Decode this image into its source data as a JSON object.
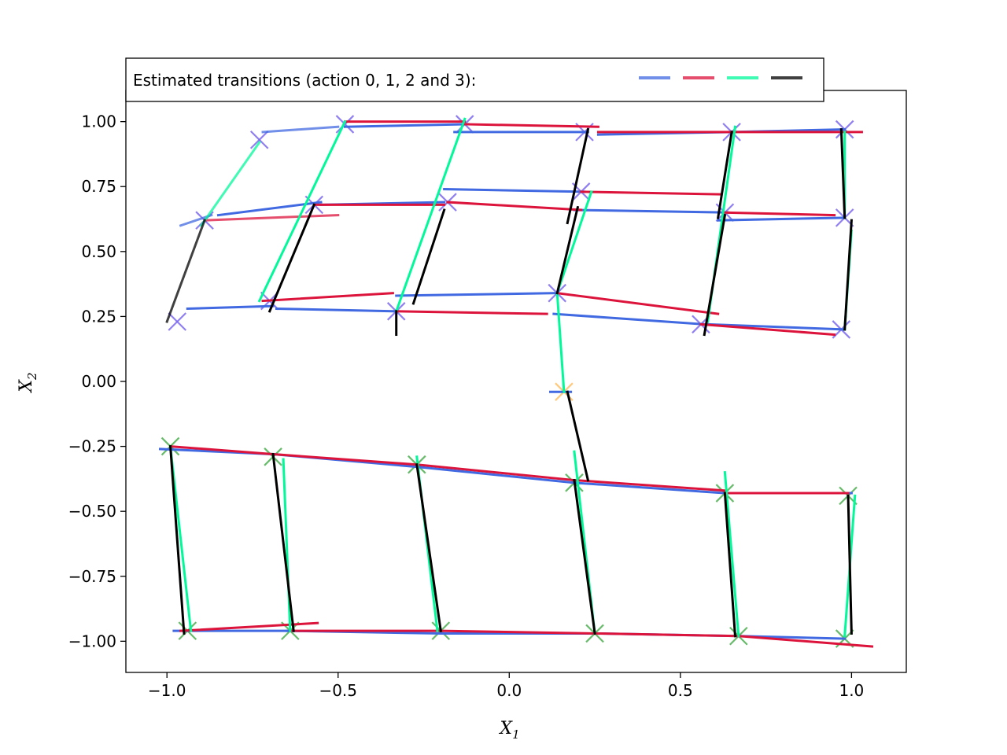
{
  "chart_data": {
    "type": "scatter",
    "title": "",
    "xlabel": "X",
    "xlabel_sub": "1",
    "ylabel": "X",
    "ylabel_sub": "2",
    "xlim": [
      -1.12,
      1.16
    ],
    "ylim": [
      -1.12,
      1.12
    ],
    "xticks": [
      -1.0,
      -0.5,
      0.0,
      0.5,
      1.0
    ],
    "xtick_labels": [
      "−1.0",
      "−0.5",
      "0.0",
      "0.5",
      "1.0"
    ],
    "yticks": [
      1.0,
      0.75,
      0.5,
      0.25,
      0.0,
      -0.25,
      -0.5,
      -0.75,
      -1.0
    ],
    "ytick_labels": [
      "1.00",
      "0.75",
      "0.50",
      "0.25",
      "0.00",
      "−0.25",
      "−0.50",
      "−0.75",
      "−1.00"
    ],
    "grid": false,
    "legend": {
      "text": "Estimated transitions (action 0, 1, 2 and 3):",
      "placement": "top-left",
      "actions": [
        {
          "action": 0,
          "color": "#4169e1"
        },
        {
          "action": 1,
          "color": "#dc143c"
        },
        {
          "action": 2,
          "color": "#00fa9a"
        },
        {
          "action": 3,
          "color": "#000000"
        }
      ]
    },
    "marker_colors": {
      "upper": "#7b68ee",
      "lower": "#4caf50",
      "mid": "#ffc066"
    },
    "points": [
      {
        "x": -0.97,
        "y": 0.23,
        "group": "upper"
      },
      {
        "x": -0.89,
        "y": 0.62,
        "group": "upper"
      },
      {
        "x": -0.73,
        "y": 0.93,
        "group": "upper"
      },
      {
        "x": -0.48,
        "y": 0.99,
        "group": "upper"
      },
      {
        "x": -0.7,
        "y": 0.31,
        "group": "upper"
      },
      {
        "x": -0.57,
        "y": 0.68,
        "group": "upper"
      },
      {
        "x": -0.33,
        "y": 0.27,
        "group": "upper"
      },
      {
        "x": -0.18,
        "y": 0.69,
        "group": "upper"
      },
      {
        "x": -0.13,
        "y": 0.99,
        "group": "upper"
      },
      {
        "x": 0.14,
        "y": 0.34,
        "group": "upper"
      },
      {
        "x": 0.21,
        "y": 0.73,
        "group": "upper"
      },
      {
        "x": 0.22,
        "y": 0.96,
        "group": "upper"
      },
      {
        "x": 0.56,
        "y": 0.22,
        "group": "upper"
      },
      {
        "x": 0.63,
        "y": 0.65,
        "group": "upper"
      },
      {
        "x": 0.65,
        "y": 0.96,
        "group": "upper"
      },
      {
        "x": 0.97,
        "y": 0.2,
        "group": "upper"
      },
      {
        "x": 0.98,
        "y": 0.63,
        "group": "upper"
      },
      {
        "x": 0.98,
        "y": 0.97,
        "group": "upper"
      },
      {
        "x": 0.16,
        "y": -0.04,
        "group": "mid"
      },
      {
        "x": -0.99,
        "y": -0.25,
        "group": "lower"
      },
      {
        "x": -0.69,
        "y": -0.29,
        "group": "lower"
      },
      {
        "x": -0.27,
        "y": -0.32,
        "group": "lower"
      },
      {
        "x": 0.19,
        "y": -0.39,
        "group": "lower"
      },
      {
        "x": 0.63,
        "y": -0.43,
        "group": "lower"
      },
      {
        "x": 0.99,
        "y": -0.44,
        "group": "lower"
      },
      {
        "x": -0.94,
        "y": -0.96,
        "group": "lower"
      },
      {
        "x": -0.64,
        "y": -0.96,
        "group": "lower"
      },
      {
        "x": -0.2,
        "y": -0.96,
        "group": "lower"
      },
      {
        "x": 0.25,
        "y": -0.97,
        "group": "lower"
      },
      {
        "x": 0.67,
        "y": -0.98,
        "group": "lower"
      },
      {
        "x": 0.98,
        "y": -0.99,
        "group": "lower"
      }
    ],
    "transitions": [
      {
        "action": 0,
        "alpha": 0.75,
        "x0": -0.96,
        "y0": 0.6,
        "x1": -0.87,
        "y1": 0.64
      },
      {
        "action": 0,
        "alpha": 0.75,
        "x0": -0.72,
        "y0": 0.96,
        "x1": -0.5,
        "y1": 0.98
      },
      {
        "action": 0,
        "alpha": 1,
        "x0": -0.85,
        "y0": 0.64,
        "x1": -0.55,
        "y1": 0.69
      },
      {
        "action": 0,
        "alpha": 1,
        "x0": -0.94,
        "y0": 0.28,
        "x1": -0.69,
        "y1": 0.29
      },
      {
        "action": 0,
        "alpha": 1,
        "x0": -0.48,
        "y0": 0.98,
        "x1": -0.12,
        "y1": 0.99
      },
      {
        "action": 0,
        "alpha": 1,
        "x0": -0.68,
        "y0": 0.28,
        "x1": -0.33,
        "y1": 0.27
      },
      {
        "action": 0,
        "alpha": 1,
        "x0": -0.55,
        "y0": 0.68,
        "x1": -0.19,
        "y1": 0.69
      },
      {
        "action": 0,
        "alpha": 1,
        "x0": -0.33,
        "y0": 0.33,
        "x1": 0.14,
        "y1": 0.34
      },
      {
        "action": 0,
        "alpha": 1,
        "x0": -0.19,
        "y0": 0.74,
        "x1": 0.22,
        "y1": 0.73
      },
      {
        "action": 0,
        "alpha": 1,
        "x0": -0.16,
        "y0": 0.96,
        "x1": 0.23,
        "y1": 0.96
      },
      {
        "action": 0,
        "alpha": 1,
        "x0": 0.13,
        "y0": 0.26,
        "x1": 0.57,
        "y1": 0.22
      },
      {
        "action": 0,
        "alpha": 1,
        "x0": 0.19,
        "y0": 0.66,
        "x1": 0.64,
        "y1": 0.65
      },
      {
        "action": 0,
        "alpha": 1,
        "x0": 0.26,
        "y0": 0.95,
        "x1": 0.65,
        "y1": 0.96
      },
      {
        "action": 0,
        "alpha": 1,
        "x0": 0.58,
        "y0": 0.22,
        "x1": 0.98,
        "y1": 0.2
      },
      {
        "action": 0,
        "alpha": 1,
        "x0": 0.61,
        "y0": 0.62,
        "x1": 0.98,
        "y1": 0.63
      },
      {
        "action": 0,
        "alpha": 1,
        "x0": 0.65,
        "y0": 0.96,
        "x1": 0.98,
        "y1": 0.97
      },
      {
        "action": 0,
        "alpha": 1,
        "x0": 0.12,
        "y0": -0.04,
        "x1": 0.18,
        "y1": -0.04
      },
      {
        "action": 0,
        "alpha": 1,
        "x0": -1.02,
        "y0": -0.26,
        "x1": -0.69,
        "y1": -0.28
      },
      {
        "action": 0,
        "alpha": 1,
        "x0": -0.69,
        "y0": -0.28,
        "x1": -0.26,
        "y1": -0.33
      },
      {
        "action": 0,
        "alpha": 1,
        "x0": -0.26,
        "y0": -0.33,
        "x1": 0.19,
        "y1": -0.39
      },
      {
        "action": 0,
        "alpha": 1,
        "x0": 0.19,
        "y0": -0.39,
        "x1": 0.63,
        "y1": -0.43
      },
      {
        "action": 0,
        "alpha": 1,
        "x0": 0.63,
        "y0": -0.43,
        "x1": 1.0,
        "y1": -0.43
      },
      {
        "action": 0,
        "alpha": 1,
        "x0": -0.98,
        "y0": -0.96,
        "x1": -0.65,
        "y1": -0.96
      },
      {
        "action": 0,
        "alpha": 1,
        "x0": -0.65,
        "y0": -0.96,
        "x1": -0.2,
        "y1": -0.97
      },
      {
        "action": 0,
        "alpha": 1,
        "x0": -0.2,
        "y0": -0.97,
        "x1": 0.25,
        "y1": -0.97
      },
      {
        "action": 0,
        "alpha": 1,
        "x0": 0.25,
        "y0": -0.97,
        "x1": 0.67,
        "y1": -0.98
      },
      {
        "action": 0,
        "alpha": 1,
        "x0": 0.67,
        "y0": -0.98,
        "x1": 0.98,
        "y1": -0.99
      },
      {
        "action": 1,
        "alpha": 0.75,
        "x0": -0.89,
        "y0": 0.62,
        "x1": -0.5,
        "y1": 0.64
      },
      {
        "action": 1,
        "alpha": 1,
        "x0": -0.57,
        "y0": 0.68,
        "x1": -0.19,
        "y1": 0.68
      },
      {
        "action": 1,
        "alpha": 1,
        "x0": -0.48,
        "y0": 1.0,
        "x1": -0.13,
        "y1": 1.0
      },
      {
        "action": 1,
        "alpha": 1,
        "x0": -0.72,
        "y0": 0.31,
        "x1": -0.34,
        "y1": 0.34
      },
      {
        "action": 1,
        "alpha": 1,
        "x0": -0.33,
        "y0": 0.27,
        "x1": 0.11,
        "y1": 0.26
      },
      {
        "action": 1,
        "alpha": 1,
        "x0": -0.18,
        "y0": 0.69,
        "x1": 0.21,
        "y1": 0.66
      },
      {
        "action": 1,
        "alpha": 1,
        "x0": -0.13,
        "y0": 0.99,
        "x1": 0.26,
        "y1": 0.98
      },
      {
        "action": 1,
        "alpha": 1,
        "x0": 0.14,
        "y0": 0.34,
        "x1": 0.61,
        "y1": 0.26
      },
      {
        "action": 1,
        "alpha": 1,
        "x0": 0.21,
        "y0": 0.73,
        "x1": 0.62,
        "y1": 0.72
      },
      {
        "action": 1,
        "alpha": 1,
        "x0": 0.26,
        "y0": 0.96,
        "x1": 0.65,
        "y1": 0.96
      },
      {
        "action": 1,
        "alpha": 1,
        "x0": 0.56,
        "y0": 0.22,
        "x1": 0.95,
        "y1": 0.18
      },
      {
        "action": 1,
        "alpha": 1,
        "x0": 0.63,
        "y0": 0.65,
        "x1": 0.95,
        "y1": 0.64
      },
      {
        "action": 1,
        "alpha": 1,
        "x0": 0.65,
        "y0": 0.96,
        "x1": 1.03,
        "y1": 0.96
      },
      {
        "action": 1,
        "alpha": 1,
        "x0": -0.99,
        "y0": -0.25,
        "x1": -0.69,
        "y1": -0.28
      },
      {
        "action": 1,
        "alpha": 1,
        "x0": -0.69,
        "y0": -0.28,
        "x1": -0.27,
        "y1": -0.32
      },
      {
        "action": 1,
        "alpha": 1,
        "x0": -0.27,
        "y0": -0.32,
        "x1": 0.19,
        "y1": -0.38
      },
      {
        "action": 1,
        "alpha": 1,
        "x0": 0.19,
        "y0": -0.38,
        "x1": 0.63,
        "y1": -0.42
      },
      {
        "action": 1,
        "alpha": 1,
        "x0": 0.63,
        "y0": -0.43,
        "x1": 0.99,
        "y1": -0.43
      },
      {
        "action": 1,
        "alpha": 1,
        "x0": -0.96,
        "y0": -0.96,
        "x1": -0.56,
        "y1": -0.93
      },
      {
        "action": 1,
        "alpha": 1,
        "x0": -0.64,
        "y0": -0.96,
        "x1": -0.2,
        "y1": -0.96
      },
      {
        "action": 1,
        "alpha": 1,
        "x0": -0.2,
        "y0": -0.96,
        "x1": 0.25,
        "y1": -0.97
      },
      {
        "action": 1,
        "alpha": 1,
        "x0": 0.25,
        "y0": -0.97,
        "x1": 0.67,
        "y1": -0.98
      },
      {
        "action": 1,
        "alpha": 1,
        "x0": 0.67,
        "y0": -0.98,
        "x1": 1.06,
        "y1": -1.02
      },
      {
        "action": 2,
        "alpha": 0.75,
        "x0": -0.9,
        "y0": 0.6,
        "x1": -0.73,
        "y1": 0.92
      },
      {
        "action": 2,
        "alpha": 1,
        "x0": -0.73,
        "y0": 0.31,
        "x1": -0.48,
        "y1": 1.0
      },
      {
        "action": 2,
        "alpha": 1,
        "x0": -0.33,
        "y0": 0.27,
        "x1": -0.13,
        "y1": 1.01
      },
      {
        "action": 2,
        "alpha": 1,
        "x0": 0.14,
        "y0": 0.34,
        "x1": 0.24,
        "y1": 0.73
      },
      {
        "action": 2,
        "alpha": 1,
        "x0": 0.58,
        "y0": 0.23,
        "x1": 0.66,
        "y1": 0.98
      },
      {
        "action": 2,
        "alpha": 1,
        "x0": 0.98,
        "y0": 0.2,
        "x1": 1.0,
        "y1": 0.58
      },
      {
        "action": 2,
        "alpha": 1,
        "x0": 0.98,
        "y0": 0.63,
        "x1": 0.98,
        "y1": 0.96
      },
      {
        "action": 2,
        "alpha": 1,
        "x0": 0.16,
        "y0": -0.04,
        "x1": 0.14,
        "y1": 0.34
      },
      {
        "action": 2,
        "alpha": 1,
        "x0": -0.99,
        "y0": -0.25,
        "x1": -0.93,
        "y1": -0.96
      },
      {
        "action": 2,
        "alpha": 1,
        "x0": -0.66,
        "y0": -0.3,
        "x1": -0.64,
        "y1": -0.96
      },
      {
        "action": 2,
        "alpha": 1,
        "x0": -0.27,
        "y0": -0.29,
        "x1": -0.21,
        "y1": -0.96
      },
      {
        "action": 2,
        "alpha": 1,
        "x0": 0.19,
        "y0": -0.27,
        "x1": 0.25,
        "y1": -0.97
      },
      {
        "action": 2,
        "alpha": 1,
        "x0": 0.63,
        "y0": -0.35,
        "x1": 0.67,
        "y1": -0.98
      },
      {
        "action": 2,
        "alpha": 1,
        "x0": 1.01,
        "y0": -0.44,
        "x1": 0.98,
        "y1": -0.98
      },
      {
        "action": 3,
        "alpha": 0.75,
        "x0": -1.0,
        "y0": 0.23,
        "x1": -0.89,
        "y1": 0.62
      },
      {
        "action": 3,
        "alpha": 1,
        "x0": -0.7,
        "y0": 0.27,
        "x1": -0.57,
        "y1": 0.68
      },
      {
        "action": 3,
        "alpha": 1,
        "x0": -0.28,
        "y0": 0.3,
        "x1": -0.19,
        "y1": 0.66
      },
      {
        "action": 3,
        "alpha": 1,
        "x0": -0.33,
        "y0": 0.18,
        "x1": -0.33,
        "y1": 0.27
      },
      {
        "action": 3,
        "alpha": 1,
        "x0": 0.17,
        "y0": 0.61,
        "x1": 0.23,
        "y1": 0.97
      },
      {
        "action": 3,
        "alpha": 1,
        "x0": 0.14,
        "y0": 0.34,
        "x1": 0.2,
        "y1": 0.67
      },
      {
        "action": 3,
        "alpha": 1,
        "x0": 0.57,
        "y0": 0.18,
        "x1": 0.63,
        "y1": 0.64
      },
      {
        "action": 3,
        "alpha": 1,
        "x0": 0.61,
        "y0": 0.63,
        "x1": 0.65,
        "y1": 0.96
      },
      {
        "action": 3,
        "alpha": 1,
        "x0": 0.98,
        "y0": 0.2,
        "x1": 1.0,
        "y1": 0.62
      },
      {
        "action": 3,
        "alpha": 1,
        "x0": 0.98,
        "y0": 0.63,
        "x1": 0.97,
        "y1": 0.97
      },
      {
        "action": 3,
        "alpha": 1,
        "x0": 0.17,
        "y0": -0.04,
        "x1": 0.23,
        "y1": -0.38
      },
      {
        "action": 3,
        "alpha": 1,
        "x0": -0.99,
        "y0": -0.25,
        "x1": -0.95,
        "y1": -0.97
      },
      {
        "action": 3,
        "alpha": 1,
        "x0": -0.69,
        "y0": -0.28,
        "x1": -0.63,
        "y1": -0.96
      },
      {
        "action": 3,
        "alpha": 1,
        "x0": -0.27,
        "y0": -0.32,
        "x1": -0.2,
        "y1": -0.96
      },
      {
        "action": 3,
        "alpha": 1,
        "x0": 0.19,
        "y0": -0.38,
        "x1": 0.25,
        "y1": -0.97
      },
      {
        "action": 3,
        "alpha": 1,
        "x0": 0.63,
        "y0": -0.43,
        "x1": 0.66,
        "y1": -0.98
      },
      {
        "action": 3,
        "alpha": 1,
        "x0": 0.99,
        "y0": -0.44,
        "x1": 1.0,
        "y1": -0.97
      }
    ]
  }
}
